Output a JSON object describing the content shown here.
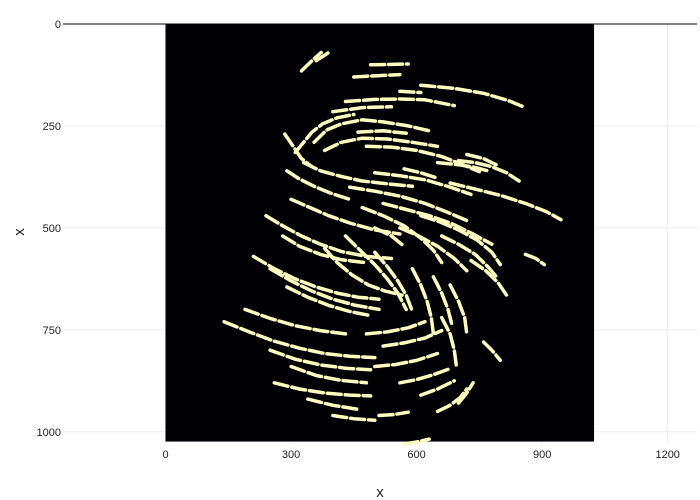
{
  "chart_data": {
    "type": "heatmap",
    "title": "",
    "xlabel": "x",
    "ylabel": "x",
    "xlim": [
      -245,
      1270
    ],
    "ylim": [
      1030,
      0
    ],
    "xticks": [
      "0",
      "300",
      "600",
      "900",
      "1200"
    ],
    "xtick_values": [
      0,
      300,
      600,
      900,
      1200
    ],
    "yticks": [
      "0",
      "250",
      "500",
      "750",
      "1000"
    ],
    "ytick_values": [
      0,
      250,
      500,
      750,
      1000
    ],
    "image_extent": {
      "x": [
        0,
        1024
      ],
      "y": [
        0,
        1024
      ]
    },
    "image_background": "#000004",
    "stroke_color": "#fcfdbf",
    "grid": true,
    "legend": "none",
    "strokes": [
      [
        [
          325,
          115
        ],
        [
          340,
          100
        ],
        [
          355,
          85
        ],
        [
          372,
          70
        ]
      ],
      [
        [
          360,
          90
        ],
        [
          375,
          80
        ],
        [
          390,
          70
        ]
      ],
      [
        [
          450,
          130
        ],
        [
          480,
          128
        ],
        [
          520,
          126
        ],
        [
          560,
          124
        ]
      ],
      [
        [
          490,
          100
        ],
        [
          540,
          99
        ],
        [
          580,
          98
        ]
      ],
      [
        [
          610,
          150
        ],
        [
          690,
          158
        ],
        [
          760,
          170
        ],
        [
          820,
          188
        ],
        [
          860,
          205
        ]
      ],
      [
        [
          430,
          190
        ],
        [
          500,
          185
        ],
        [
          560,
          184
        ],
        [
          620,
          186
        ],
        [
          690,
          200
        ]
      ],
      [
        [
          560,
          165
        ],
        [
          610,
          168
        ]
      ],
      [
        [
          400,
          215
        ],
        [
          470,
          205
        ],
        [
          540,
          203
        ]
      ],
      [
        [
          310,
          315
        ],
        [
          330,
          290
        ],
        [
          350,
          265
        ],
        [
          375,
          245
        ],
        [
          410,
          230
        ],
        [
          450,
          222
        ]
      ],
      [
        [
          285,
          270
        ],
        [
          305,
          300
        ],
        [
          325,
          330
        ],
        [
          350,
          350
        ]
      ],
      [
        [
          355,
          290
        ],
        [
          385,
          260
        ],
        [
          420,
          245
        ],
        [
          470,
          235
        ],
        [
          520,
          240
        ],
        [
          580,
          250
        ],
        [
          630,
          262
        ]
      ],
      [
        [
          380,
          310
        ],
        [
          420,
          290
        ],
        [
          470,
          280
        ],
        [
          530,
          282
        ],
        [
          590,
          290
        ],
        [
          650,
          300
        ]
      ],
      [
        [
          460,
          265
        ],
        [
          520,
          262
        ],
        [
          575,
          268
        ]
      ],
      [
        [
          480,
          300
        ],
        [
          540,
          302
        ],
        [
          600,
          310
        ],
        [
          660,
          325
        ],
        [
          710,
          345
        ],
        [
          750,
          362
        ]
      ],
      [
        [
          650,
          340
        ],
        [
          700,
          345
        ],
        [
          740,
          352
        ],
        [
          770,
          360
        ]
      ],
      [
        [
          700,
          335
        ],
        [
          740,
          340
        ],
        [
          780,
          350
        ],
        [
          815,
          365
        ],
        [
          845,
          385
        ]
      ],
      [
        [
          720,
          320
        ],
        [
          760,
          330
        ],
        [
          790,
          345
        ]
      ],
      [
        [
          680,
          390
        ],
        [
          740,
          405
        ],
        [
          800,
          420
        ],
        [
          860,
          440
        ],
        [
          910,
          460
        ],
        [
          945,
          480
        ]
      ],
      [
        [
          290,
          360
        ],
        [
          320,
          380
        ],
        [
          355,
          398
        ],
        [
          395,
          415
        ],
        [
          440,
          430
        ]
      ],
      [
        [
          330,
          340
        ],
        [
          370,
          360
        ],
        [
          420,
          374
        ],
        [
          470,
          385
        ],
        [
          530,
          392
        ],
        [
          590,
          398
        ]
      ],
      [
        [
          500,
          365
        ],
        [
          560,
          372
        ],
        [
          620,
          382
        ],
        [
          680,
          400
        ],
        [
          730,
          418
        ]
      ],
      [
        [
          440,
          400
        ],
        [
          500,
          410
        ],
        [
          560,
          422
        ],
        [
          620,
          440
        ],
        [
          670,
          460
        ],
        [
          720,
          482
        ]
      ],
      [
        [
          300,
          430
        ],
        [
          345,
          450
        ],
        [
          390,
          470
        ],
        [
          440,
          488
        ],
        [
          500,
          505
        ],
        [
          560,
          515
        ]
      ],
      [
        [
          240,
          470
        ],
        [
          280,
          495
        ],
        [
          325,
          520
        ],
        [
          370,
          540
        ],
        [
          420,
          558
        ],
        [
          480,
          570
        ],
        [
          540,
          575
        ]
      ],
      [
        [
          280,
          520
        ],
        [
          320,
          545
        ],
        [
          370,
          565
        ],
        [
          420,
          578
        ],
        [
          475,
          585
        ]
      ],
      [
        [
          470,
          450
        ],
        [
          520,
          470
        ],
        [
          570,
          495
        ],
        [
          610,
          525
        ],
        [
          640,
          555
        ],
        [
          660,
          585
        ]
      ],
      [
        [
          520,
          440
        ],
        [
          575,
          455
        ],
        [
          630,
          470
        ],
        [
          685,
          490
        ],
        [
          735,
          515
        ],
        [
          780,
          540
        ]
      ],
      [
        [
          560,
          500
        ],
        [
          605,
          520
        ],
        [
          650,
          545
        ],
        [
          690,
          575
        ],
        [
          720,
          605
        ]
      ],
      [
        [
          610,
          470
        ],
        [
          655,
          485
        ],
        [
          700,
          505
        ],
        [
          745,
          530
        ],
        [
          780,
          560
        ],
        [
          800,
          590
        ]
      ],
      [
        [
          660,
          520
        ],
        [
          700,
          540
        ],
        [
          740,
          565
        ],
        [
          770,
          595
        ],
        [
          795,
          625
        ]
      ],
      [
        [
          730,
          580
        ],
        [
          765,
          605
        ],
        [
          795,
          635
        ],
        [
          815,
          665
        ]
      ],
      [
        [
          860,
          565
        ],
        [
          885,
          575
        ],
        [
          905,
          590
        ]
      ],
      [
        [
          210,
          570
        ],
        [
          260,
          600
        ],
        [
          310,
          625
        ],
        [
          360,
          645
        ],
        [
          410,
          660
        ],
        [
          460,
          670
        ],
        [
          510,
          675
        ]
      ],
      [
        [
          250,
          600
        ],
        [
          300,
          630
        ],
        [
          350,
          655
        ],
        [
          400,
          675
        ],
        [
          455,
          690
        ],
        [
          510,
          700
        ]
      ],
      [
        [
          290,
          645
        ],
        [
          340,
          670
        ],
        [
          390,
          690
        ],
        [
          440,
          705
        ],
        [
          490,
          715
        ]
      ],
      [
        [
          380,
          550
        ],
        [
          410,
          585
        ],
        [
          445,
          615
        ],
        [
          485,
          640
        ],
        [
          525,
          655
        ],
        [
          565,
          665
        ]
      ],
      [
        [
          430,
          520
        ],
        [
          465,
          555
        ],
        [
          500,
          590
        ],
        [
          530,
          625
        ],
        [
          555,
          660
        ],
        [
          575,
          700
        ]
      ],
      [
        [
          500,
          560
        ],
        [
          530,
          595
        ],
        [
          555,
          630
        ],
        [
          575,
          665
        ],
        [
          590,
          705
        ]
      ],
      [
        [
          590,
          600
        ],
        [
          610,
          640
        ],
        [
          625,
          680
        ],
        [
          635,
          720
        ],
        [
          640,
          760
        ]
      ],
      [
        [
          640,
          620
        ],
        [
          660,
          660
        ],
        [
          675,
          700
        ],
        [
          685,
          740
        ]
      ],
      [
        [
          680,
          640
        ],
        [
          700,
          680
        ],
        [
          715,
          720
        ],
        [
          720,
          760
        ]
      ],
      [
        [
          140,
          730
        ],
        [
          200,
          755
        ],
        [
          260,
          778
        ],
        [
          320,
          795
        ],
        [
          380,
          808
        ],
        [
          440,
          815
        ],
        [
          500,
          818
        ]
      ],
      [
        [
          190,
          700
        ],
        [
          250,
          722
        ],
        [
          310,
          740
        ],
        [
          370,
          752
        ],
        [
          430,
          760
        ]
      ],
      [
        [
          250,
          800
        ],
        [
          310,
          822
        ],
        [
          370,
          836
        ],
        [
          430,
          844
        ],
        [
          490,
          848
        ]
      ],
      [
        [
          300,
          840
        ],
        [
          360,
          862
        ],
        [
          420,
          874
        ],
        [
          480,
          880
        ]
      ],
      [
        [
          260,
          880
        ],
        [
          320,
          895
        ],
        [
          380,
          905
        ],
        [
          440,
          910
        ],
        [
          490,
          912
        ]
      ],
      [
        [
          340,
          920
        ],
        [
          400,
          935
        ],
        [
          460,
          945
        ]
      ],
      [
        [
          400,
          960
        ],
        [
          450,
          968
        ],
        [
          500,
          972
        ]
      ],
      [
        [
          510,
          960
        ],
        [
          545,
          958
        ],
        [
          580,
          952
        ]
      ],
      [
        [
          500,
          840
        ],
        [
          550,
          835
        ],
        [
          600,
          825
        ],
        [
          650,
          808
        ]
      ],
      [
        [
          520,
          790
        ],
        [
          570,
          782
        ],
        [
          620,
          770
        ],
        [
          660,
          752
        ]
      ],
      [
        [
          480,
          760
        ],
        [
          530,
          755
        ],
        [
          580,
          745
        ],
        [
          620,
          730
        ]
      ],
      [
        [
          560,
          880
        ],
        [
          600,
          872
        ],
        [
          640,
          860
        ],
        [
          680,
          845
        ]
      ],
      [
        [
          610,
          910
        ],
        [
          650,
          895
        ],
        [
          690,
          875
        ]
      ],
      [
        [
          650,
          950
        ],
        [
          680,
          935
        ],
        [
          705,
          915
        ],
        [
          720,
          895
        ]
      ],
      [
        [
          700,
          930
        ],
        [
          720,
          905
        ],
        [
          735,
          880
        ]
      ],
      [
        [
          660,
          720
        ],
        [
          680,
          760
        ],
        [
          690,
          800
        ],
        [
          695,
          840
        ]
      ],
      [
        [
          760,
          780
        ],
        [
          780,
          800
        ],
        [
          800,
          825
        ]
      ],
      [
        [
          570,
          1030
        ],
        [
          600,
          1025
        ],
        [
          630,
          1018
        ]
      ],
      [
        [
          570,
          355
        ],
        [
          610,
          365
        ],
        [
          650,
          378
        ]
      ],
      [
        [
          500,
          500
        ],
        [
          540,
          520
        ],
        [
          570,
          545
        ]
      ]
    ]
  }
}
